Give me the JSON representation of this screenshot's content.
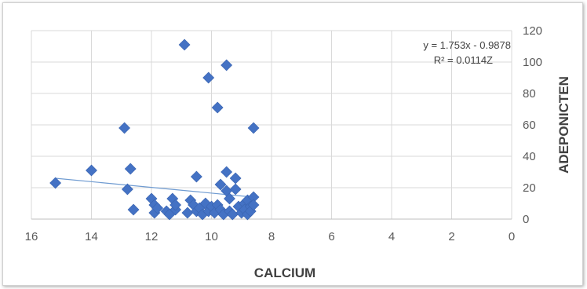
{
  "chart_data": {
    "type": "scatter",
    "xlabel": "CALCIUM",
    "ylabel": "ADEPONICTEN",
    "xlim": [
      0,
      16
    ],
    "x_reversed": true,
    "ylim": [
      0,
      120
    ],
    "x_ticks": [
      "16",
      "14",
      "12",
      "10",
      "8",
      "6",
      "4",
      "2",
      "0"
    ],
    "y_ticks": [
      "0",
      "20",
      "40",
      "60",
      "80",
      "100",
      "120"
    ],
    "grid": true,
    "marker_color": "#4472c4",
    "trendline_color": "#6f9bd1",
    "trendline": {
      "type": "linear",
      "from_x": 15.2,
      "to_x": 8.6,
      "from_y": 26,
      "to_y": 14,
      "equation": "y = 1.753x - 0.9878",
      "r_squared": "R² = 0.0114Z"
    },
    "points": [
      {
        "x": 15.2,
        "y": 23
      },
      {
        "x": 14.0,
        "y": 31
      },
      {
        "x": 12.9,
        "y": 58
      },
      {
        "x": 12.8,
        "y": 19
      },
      {
        "x": 12.7,
        "y": 32
      },
      {
        "x": 12.6,
        "y": 6
      },
      {
        "x": 12.0,
        "y": 13
      },
      {
        "x": 11.9,
        "y": 9
      },
      {
        "x": 11.9,
        "y": 4
      },
      {
        "x": 11.8,
        "y": 7
      },
      {
        "x": 11.5,
        "y": 5
      },
      {
        "x": 11.4,
        "y": 3
      },
      {
        "x": 11.3,
        "y": 13
      },
      {
        "x": 11.2,
        "y": 6
      },
      {
        "x": 11.2,
        "y": 9
      },
      {
        "x": 10.9,
        "y": 111
      },
      {
        "x": 10.8,
        "y": 4
      },
      {
        "x": 10.7,
        "y": 12
      },
      {
        "x": 10.6,
        "y": 9
      },
      {
        "x": 10.5,
        "y": 5
      },
      {
        "x": 10.5,
        "y": 27
      },
      {
        "x": 10.4,
        "y": 7
      },
      {
        "x": 10.3,
        "y": 3
      },
      {
        "x": 10.2,
        "y": 10
      },
      {
        "x": 10.1,
        "y": 90
      },
      {
        "x": 10.1,
        "y": 5
      },
      {
        "x": 10.0,
        "y": 8
      },
      {
        "x": 9.9,
        "y": 4
      },
      {
        "x": 9.8,
        "y": 71
      },
      {
        "x": 9.8,
        "y": 9
      },
      {
        "x": 9.7,
        "y": 22
      },
      {
        "x": 9.7,
        "y": 6
      },
      {
        "x": 9.6,
        "y": 3
      },
      {
        "x": 9.5,
        "y": 98
      },
      {
        "x": 9.5,
        "y": 30
      },
      {
        "x": 9.5,
        "y": 18
      },
      {
        "x": 9.4,
        "y": 13
      },
      {
        "x": 9.4,
        "y": 5
      },
      {
        "x": 9.3,
        "y": 3
      },
      {
        "x": 9.2,
        "y": 26
      },
      {
        "x": 9.2,
        "y": 19
      },
      {
        "x": 9.1,
        "y": 8
      },
      {
        "x": 9.0,
        "y": 4
      },
      {
        "x": 8.9,
        "y": 10
      },
      {
        "x": 8.9,
        "y": 6
      },
      {
        "x": 8.8,
        "y": 12
      },
      {
        "x": 8.8,
        "y": 3
      },
      {
        "x": 8.7,
        "y": 8
      },
      {
        "x": 8.7,
        "y": 5
      },
      {
        "x": 8.6,
        "y": 58
      },
      {
        "x": 8.6,
        "y": 14
      },
      {
        "x": 8.6,
        "y": 9
      }
    ]
  }
}
